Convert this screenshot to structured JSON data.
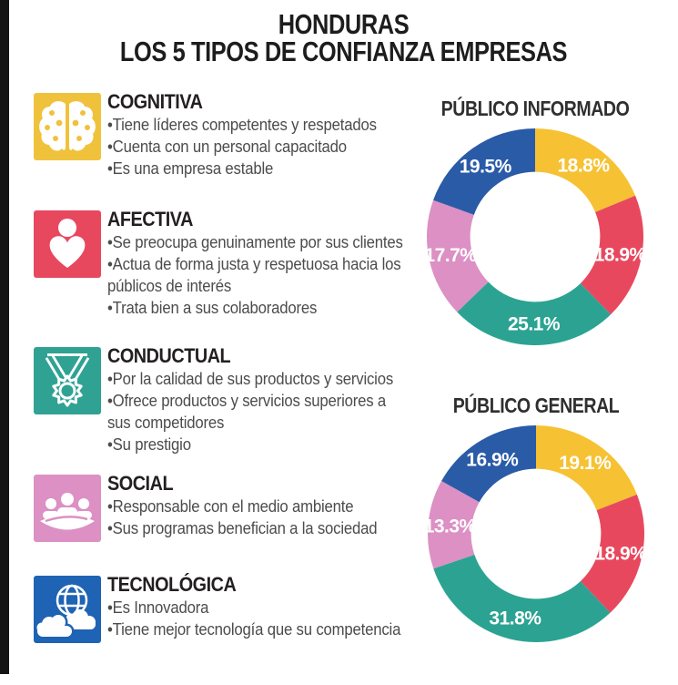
{
  "title": {
    "line1": "HONDURAS",
    "line2": "LOS 5 TIPOS DE CONFIANZA EMPRESAS"
  },
  "sections": [
    {
      "title": "COGNITIVA",
      "icon": "brain-icon",
      "color": "#F0C23C",
      "bullets": [
        "Tiene líderes competentes y respetados",
        "Cuenta con un personal capacitado",
        "Es una empresa estable"
      ]
    },
    {
      "title": "AFECTIVA",
      "icon": "person-heart-icon",
      "color": "#E8485E",
      "bullets": [
        "Se preocupa genuinamente por sus clientes",
        "Actua de forma justa y respetuosa hacia los públicos de interés",
        "Trata bien a sus colaboradores"
      ]
    },
    {
      "title": "CONDUCTUAL",
      "icon": "medal-icon",
      "color": "#2FA294",
      "bullets": [
        "Por la calidad de sus productos y servicios",
        "Ofrece productos y servicios superiores a sus competidores",
        "Su prestigio"
      ]
    },
    {
      "title": "SOCIAL",
      "icon": "people-group-icon",
      "color": "#DC90C3",
      "bullets": [
        "Responsable con el medio ambiente",
        "Sus programas benefician a la sociedad"
      ]
    },
    {
      "title": "TECNOLÓGICA",
      "icon": "globe-cloud-icon",
      "color": "#1E63B4",
      "bullets": [
        "Es Innovadora",
        "Tiene mejor tecnología que su competencia"
      ]
    }
  ],
  "chart_data": [
    {
      "type": "pie",
      "subtype": "donut",
      "title": "PÚBLICO INFORMADO",
      "categories": [
        "Cognitiva",
        "Afectiva",
        "Conductual",
        "Social",
        "Tecnológica"
      ],
      "values": [
        18.8,
        18.9,
        25.1,
        17.7,
        19.5
      ],
      "labels": [
        "18.8%",
        "18.9%",
        "25.1%",
        "17.7%",
        "19.5%"
      ],
      "colors": [
        "#F6C233",
        "#E8485E",
        "#2CA392",
        "#DC90C3",
        "#2A5BA7"
      ],
      "start_angle_deg": 0,
      "direction": "clockwise",
      "inner_radius_ratio": 0.6,
      "label_color": "#FFFFFF",
      "legend": "none"
    },
    {
      "type": "pie",
      "subtype": "donut",
      "title": "PÚBLICO GENERAL",
      "categories": [
        "Cognitiva",
        "Afectiva",
        "Conductual",
        "Social",
        "Tecnológica"
      ],
      "values": [
        19.1,
        18.9,
        31.8,
        13.3,
        16.9
      ],
      "labels": [
        "19.1%",
        "18.9%",
        "31.8%",
        "13.3%",
        "16.9%"
      ],
      "colors": [
        "#F6C233",
        "#E8485E",
        "#2CA392",
        "#DC90C3",
        "#2A5BA7"
      ],
      "start_angle_deg": 0,
      "direction": "clockwise",
      "inner_radius_ratio": 0.6,
      "label_color": "#FFFFFF",
      "legend": "none"
    }
  ]
}
